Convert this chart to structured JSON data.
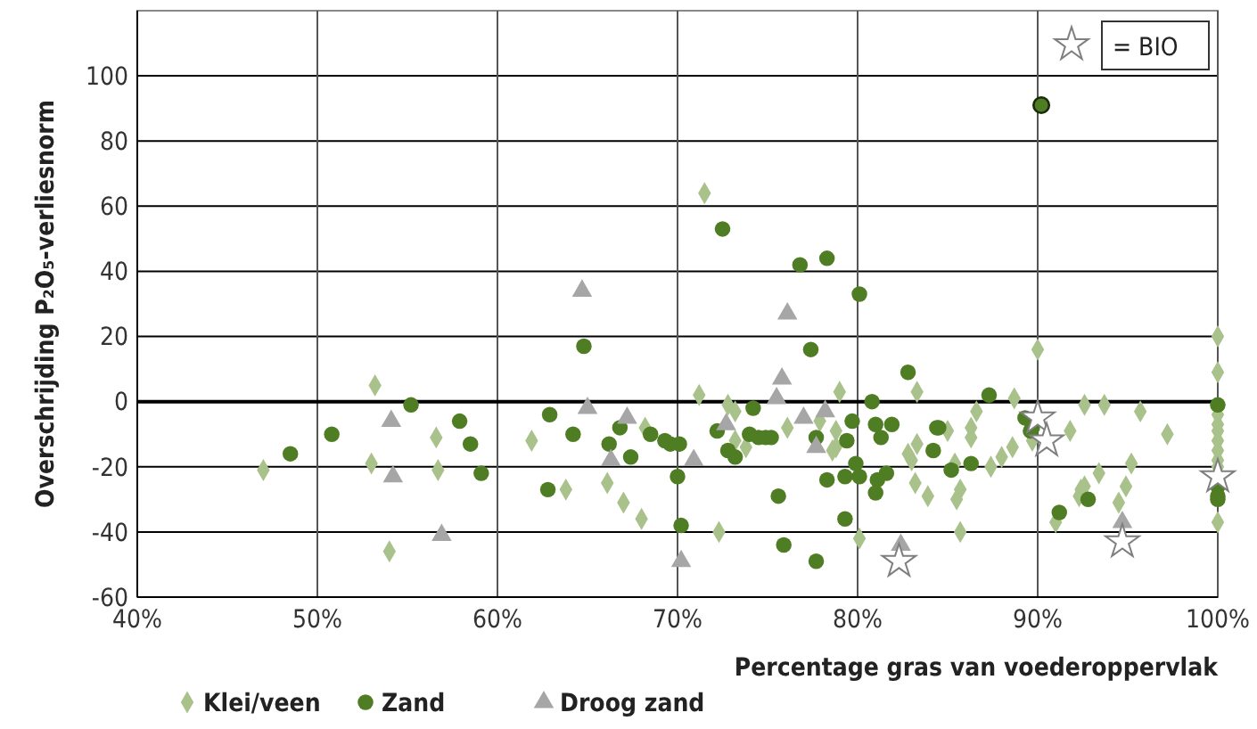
{
  "chart_data": {
    "type": "scatter",
    "xlabel": "Percentage gras van voederoppervlak",
    "ylabel": "Overschrijding P₂O₅-verliesnorm",
    "xlim": [
      40,
      100
    ],
    "ylim": [
      -60,
      120
    ],
    "xticks": [
      {
        "value": 40,
        "label": "40%"
      },
      {
        "value": 50,
        "label": "50%"
      },
      {
        "value": 60,
        "label": "60%"
      },
      {
        "value": 70,
        "label": "70%"
      },
      {
        "value": 80,
        "label": "80%"
      },
      {
        "value": 90,
        "label": "90%"
      },
      {
        "value": 100,
        "label": "100%"
      }
    ],
    "yticks": [
      -60,
      -40,
      -20,
      0,
      20,
      40,
      60,
      80,
      100
    ],
    "grid": true,
    "legend": "bottom",
    "ref_lines": [
      {
        "axis": "y",
        "value": 0
      }
    ],
    "series": [
      {
        "name": "Klei/veen",
        "color": "#a9c18b",
        "marker": "diamond",
        "x": [
          47.0,
          53.2,
          53.0,
          54.0,
          56.6,
          56.7,
          61.9,
          63.8,
          66.1,
          67.0,
          68.2,
          68.0,
          71.2,
          72.3,
          72.8,
          73.2,
          73.2,
          73.8,
          76.1,
          77.9,
          78.6,
          71.5,
          79.0,
          78.8,
          78.8,
          80.1,
          83.3,
          85.0,
          83.3,
          82.8,
          83.0,
          83.2,
          83.9,
          85.4,
          85.7,
          85.5,
          85.7,
          86.3,
          86.3,
          86.6,
          87.4,
          88.0,
          88.6,
          88.7,
          90.0,
          89.7,
          91.8,
          92.6,
          93.7,
          95.7,
          97.2,
          93.4,
          92.4,
          92.3,
          92.6,
          95.2,
          94.9,
          94.5,
          91.0,
          100,
          100,
          100,
          100,
          100,
          100,
          100,
          100,
          100,
          100
        ],
        "values": [
          -21,
          5,
          -19,
          -46,
          -11,
          -21,
          -12,
          -27,
          -25,
          -31,
          -8,
          -36,
          2,
          -40,
          -1,
          -3,
          -12,
          -14,
          -8,
          -6,
          -15,
          64,
          3,
          -9,
          -14,
          -42,
          3,
          -9,
          -13,
          -16,
          -18,
          -25,
          -29,
          -19,
          -27,
          -30,
          -40,
          -8,
          -11,
          -3,
          -20,
          -17,
          -14,
          1,
          16,
          -12,
          -9,
          -1,
          -1,
          -3,
          -10,
          -22,
          -27,
          -29,
          -26,
          -19,
          -26,
          -31,
          -37,
          20,
          9,
          -4,
          -7,
          -9,
          -12,
          -15,
          -18,
          -20,
          -37
        ]
      },
      {
        "name": "Zand",
        "color": "#4e7d23",
        "marker": "circle",
        "x": [
          48.5,
          50.8,
          55.2,
          57.9,
          58.5,
          59.1,
          62.9,
          62.8,
          64.2,
          64.8,
          66.2,
          66.8,
          67.4,
          68.5,
          69.3,
          69.6,
          70.1,
          70.0,
          70.2,
          72.2,
          72.8,
          73.2,
          74.2,
          74.0,
          74.5,
          74.9,
          75.2,
          75.6,
          75.9,
          77.4,
          76.8,
          77.7,
          78.3,
          77.7,
          72.5,
          78.3,
          80.1,
          80.8,
          79.7,
          79.4,
          81.0,
          81.3,
          81.9,
          79.9,
          79.3,
          80.1,
          81.1,
          81.6,
          81.0,
          79.3,
          82.8,
          84.4,
          84.5,
          84.2,
          85.2,
          86.3,
          87.3,
          89.3,
          89.6,
          89.7,
          92.8,
          91.2,
          100,
          100,
          100,
          100,
          90.2
        ],
        "values": [
          -16,
          -10,
          -1,
          -6,
          -13,
          -22,
          -4,
          -27,
          -10,
          17,
          -13,
          -8,
          -17,
          -10,
          -12,
          -13,
          -13,
          -23,
          -38,
          -9,
          -15,
          -17,
          -2,
          -10,
          -11,
          -11,
          -11,
          -29,
          -44,
          16,
          42,
          -11,
          -24,
          -49,
          53,
          44,
          33,
          0,
          -6,
          -12,
          -7,
          -11,
          -7,
          -19,
          -23,
          -23,
          -24,
          -22,
          -28,
          -36,
          9,
          -8,
          -8,
          -15,
          -21,
          -19,
          2,
          -5,
          -9,
          -8,
          -30,
          -34,
          -1,
          -26,
          -29,
          -30,
          91
        ]
      },
      {
        "name": "Droog zand",
        "color": "#a6a6a6",
        "marker": "triangle",
        "x": [
          54.1,
          54.2,
          56.9,
          64.7,
          65.0,
          66.3,
          67.2,
          70.2,
          70.9,
          72.7,
          75.5,
          75.8,
          76.1,
          77.0,
          77.7,
          78.2,
          94.7,
          82.4
        ],
        "values": [
          -6,
          -23,
          -41,
          34,
          -2,
          -18,
          -5,
          -49,
          -18,
          -7,
          1,
          7,
          27,
          -5,
          -14,
          -3,
          -37,
          -44
        ]
      },
      {
        "name": "= BIO",
        "color": "#ffffff",
        "marker": "star",
        "x": [
          90.0,
          90.5,
          94.7,
          82.3,
          100
        ],
        "values": [
          -5,
          -12,
          -43,
          -49,
          -23
        ]
      }
    ]
  }
}
